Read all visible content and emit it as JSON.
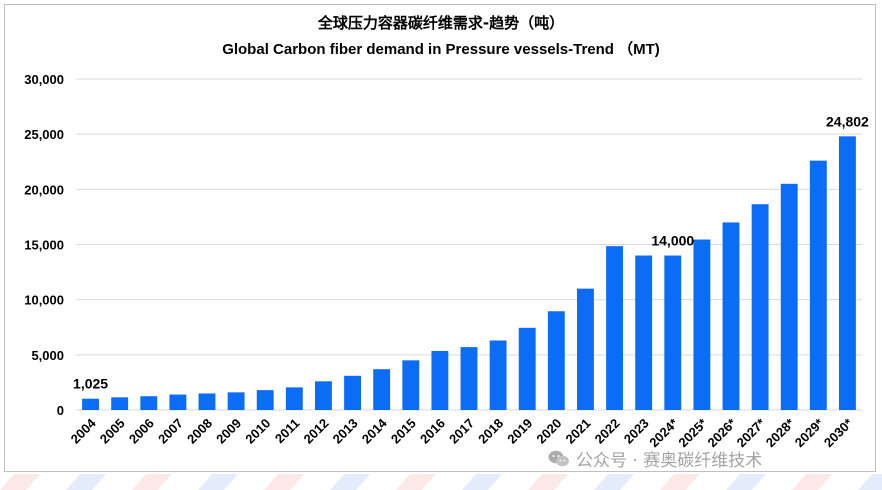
{
  "chart_data": {
    "type": "bar",
    "title": "全球压力容器碳纤维需求-趋势（吨）",
    "subtitle": "Global Carbon fiber demand in Pressure vessels-Trend （MT)",
    "categories": [
      "2004",
      "2005",
      "2006",
      "2007",
      "2008",
      "2009",
      "2010",
      "2011",
      "2012",
      "2013",
      "2014",
      "2015",
      "2016",
      "2017",
      "2018",
      "2019",
      "2020",
      "2021",
      "2022",
      "2023",
      "2024*",
      "2025*",
      "2026*",
      "2027*",
      "2028*",
      "2029*",
      "2030*"
    ],
    "values": [
      1025,
      1150,
      1250,
      1400,
      1500,
      1600,
      1800,
      2050,
      2600,
      3100,
      3700,
      4500,
      5350,
      5700,
      6300,
      7450,
      8950,
      11000,
      14850,
      14000,
      14000,
      15450,
      17000,
      18650,
      20500,
      22600,
      24802
    ],
    "ylim": [
      0,
      30000
    ],
    "yticks": [
      "0",
      "5,000",
      "10,000",
      "15,000",
      "20,000",
      "25,000",
      "30,000"
    ],
    "ytick_values": [
      0,
      5000,
      10000,
      15000,
      20000,
      25000,
      30000
    ],
    "data_labels": [
      {
        "category": "2004",
        "text": "1,025"
      },
      {
        "category": "2024*",
        "text": "14,000"
      },
      {
        "category": "2030*",
        "text": "24,802"
      }
    ],
    "bar_color": "#0b6cf5",
    "grid": "horizontal",
    "xlabel": "",
    "ylabel": ""
  },
  "watermark": {
    "text": "公众号 · 赛奥碳纤维技术",
    "icon": "wechat-icon"
  },
  "colors": {
    "stripe_red": "#e8453c",
    "stripe_blue": "#1e5bd6"
  }
}
